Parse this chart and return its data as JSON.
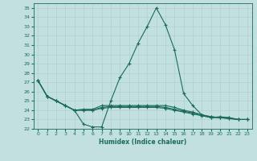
{
  "xlabel": "Humidex (Indice chaleur)",
  "xlim": [
    -0.5,
    23.5
  ],
  "ylim": [
    22,
    35.5
  ],
  "xticks": [
    0,
    1,
    2,
    3,
    4,
    5,
    6,
    7,
    8,
    9,
    10,
    11,
    12,
    13,
    14,
    15,
    16,
    17,
    18,
    19,
    20,
    21,
    22,
    23
  ],
  "yticks": [
    22,
    23,
    24,
    25,
    26,
    27,
    28,
    29,
    30,
    31,
    32,
    33,
    34,
    35
  ],
  "bg_color": "#c2e0e0",
  "grid_color": "#b0d0d0",
  "line_color": "#1a6b5a",
  "line1_x": [
    0,
    1,
    2,
    3,
    4,
    5,
    6,
    7,
    8,
    9,
    10,
    11,
    12,
    13,
    14,
    15,
    16,
    17,
    18,
    19,
    20,
    21,
    22,
    23
  ],
  "line1_y": [
    27.2,
    25.5,
    25.0,
    24.5,
    24.0,
    22.5,
    22.2,
    22.2,
    25.0,
    27.5,
    29.0,
    31.2,
    33.0,
    35.0,
    33.2,
    30.5,
    25.8,
    24.5,
    23.5,
    23.2,
    23.3,
    23.2,
    23.0,
    23.0
  ],
  "line2_x": [
    0,
    1,
    2,
    3,
    4,
    5,
    6,
    7,
    8,
    9,
    10,
    11,
    12,
    13,
    14,
    15,
    16,
    17,
    18,
    19,
    20,
    21,
    22,
    23
  ],
  "line2_y": [
    27.2,
    25.5,
    25.0,
    24.5,
    24.0,
    24.1,
    24.1,
    24.5,
    24.5,
    24.5,
    24.5,
    24.5,
    24.5,
    24.5,
    24.5,
    24.3,
    24.0,
    23.8,
    23.5,
    23.3,
    23.2,
    23.2,
    23.0,
    23.0
  ],
  "line3_x": [
    0,
    1,
    2,
    3,
    4,
    5,
    6,
    7,
    8,
    9,
    10,
    11,
    12,
    13,
    14,
    15,
    16,
    17,
    18,
    19,
    20,
    21,
    22,
    23
  ],
  "line3_y": [
    27.2,
    25.5,
    25.0,
    24.5,
    24.0,
    24.0,
    24.0,
    24.3,
    24.4,
    24.4,
    24.4,
    24.4,
    24.4,
    24.4,
    24.3,
    24.1,
    23.9,
    23.7,
    23.5,
    23.3,
    23.2,
    23.1,
    23.0,
    23.0
  ],
  "line4_x": [
    0,
    1,
    2,
    3,
    4,
    5,
    6,
    7,
    8,
    9,
    10,
    11,
    12,
    13,
    14,
    15,
    16,
    17,
    18,
    19,
    20,
    21,
    22,
    23
  ],
  "line4_y": [
    27.2,
    25.5,
    25.0,
    24.5,
    24.0,
    24.0,
    24.0,
    24.2,
    24.3,
    24.3,
    24.3,
    24.3,
    24.3,
    24.3,
    24.2,
    24.0,
    23.8,
    23.6,
    23.4,
    23.2,
    23.2,
    23.1,
    23.0,
    23.0
  ],
  "marker": "+",
  "markersize": 3,
  "linewidth": 0.8
}
